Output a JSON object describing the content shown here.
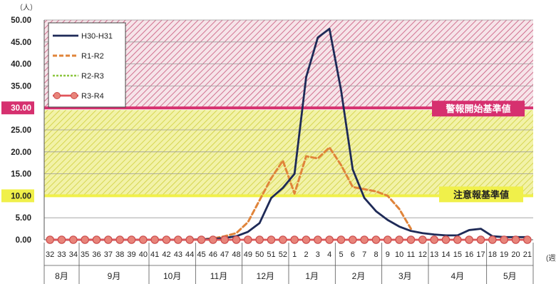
{
  "chart_data": {
    "type": "line",
    "y_unit": "（人）",
    "x_unit": "(週)",
    "ylim": [
      0,
      50
    ],
    "yticks": [
      "0.00",
      "5.00",
      "10.00",
      "15.00",
      "20.00",
      "25.00",
      "30.00",
      "35.00",
      "40.00",
      "45.00",
      "50.00"
    ],
    "categories": [
      "32",
      "33",
      "34",
      "35",
      "36",
      "37",
      "38",
      "39",
      "40",
      "41",
      "42",
      "43",
      "44",
      "45",
      "46",
      "47",
      "48",
      "49",
      "50",
      "51",
      "52",
      "1",
      "2",
      "3",
      "4",
      "5",
      "6",
      "7",
      "8",
      "9",
      "10",
      "11",
      "12",
      "13",
      "14",
      "15",
      "16",
      "17",
      "18",
      "19",
      "20",
      "21"
    ],
    "months": [
      {
        "label": "8月",
        "span": 3
      },
      {
        "label": "9月",
        "span": 6
      },
      {
        "label": "10月",
        "span": 4
      },
      {
        "label": "11月",
        "span": 4
      },
      {
        "label": "12月",
        "span": 4
      },
      {
        "label": "1月",
        "span": 4
      },
      {
        "label": "2月",
        "span": 4
      },
      {
        "label": "3月",
        "span": 4
      },
      {
        "label": "4月",
        "span": 5
      },
      {
        "label": "5月",
        "span": 4
      }
    ],
    "thresholds": [
      {
        "label": "警報開始基準値",
        "value": 30,
        "color": "#d6306f"
      },
      {
        "label": "注意報基準値",
        "value": 10,
        "color": "#f0f04a"
      }
    ],
    "series": [
      {
        "name": "H30-H31",
        "color": "#1e2a57",
        "style": "solid",
        "marker": "none",
        "values": [
          0,
          0,
          0,
          0,
          0,
          0,
          0,
          0,
          0,
          0,
          0,
          0,
          0,
          0.1,
          0.2,
          0.4,
          0.8,
          1.8,
          3.8,
          9.5,
          11.8,
          15,
          37,
          46,
          48,
          34,
          16,
          9.5,
          6.5,
          4.5,
          3,
          2,
          1.5,
          1.2,
          1.0,
          1.0,
          2.2,
          2.5,
          0.8,
          0.6,
          0.6,
          0.6
        ]
      },
      {
        "name": "R1-R2",
        "color": "#e0843a",
        "style": "dash",
        "marker": "none",
        "values": [
          0,
          0,
          0,
          0,
          0,
          0,
          0,
          0,
          0,
          0,
          0,
          0,
          0,
          0.1,
          0.3,
          0.8,
          1.5,
          4,
          9,
          14,
          18,
          10.5,
          19,
          18.5,
          21,
          17,
          12,
          11.5,
          11,
          10,
          7,
          2.5,
          null,
          null,
          null,
          null,
          null,
          null,
          null,
          null,
          null,
          null
        ]
      },
      {
        "name": "R2-R3",
        "color": "#8cc63f",
        "style": "dot",
        "marker": "none",
        "values": [
          0,
          0,
          0,
          0,
          0,
          0,
          0,
          0,
          0,
          0,
          0,
          0,
          0,
          0,
          0,
          0,
          0,
          0,
          0,
          0,
          0,
          0,
          0,
          0,
          0,
          0,
          0,
          0,
          0,
          0,
          0,
          0,
          0,
          0,
          0,
          0,
          0,
          0,
          0,
          0,
          0,
          0
        ]
      },
      {
        "name": "R3-R4",
        "color": "#e0545a",
        "style": "solid",
        "marker": "circle",
        "values": [
          0,
          0,
          0,
          0,
          0,
          0,
          0,
          0,
          0,
          0,
          0,
          0,
          0,
          0,
          0,
          0,
          0,
          0,
          0,
          0,
          0,
          0,
          0,
          0,
          0,
          0,
          0,
          0,
          0,
          0,
          0,
          0,
          0,
          0,
          0,
          0,
          0,
          0,
          0,
          0,
          0,
          0
        ]
      }
    ],
    "highlight_ticks": {
      "30.00": "#d6306f",
      "10.00": "#f0f04a"
    }
  }
}
